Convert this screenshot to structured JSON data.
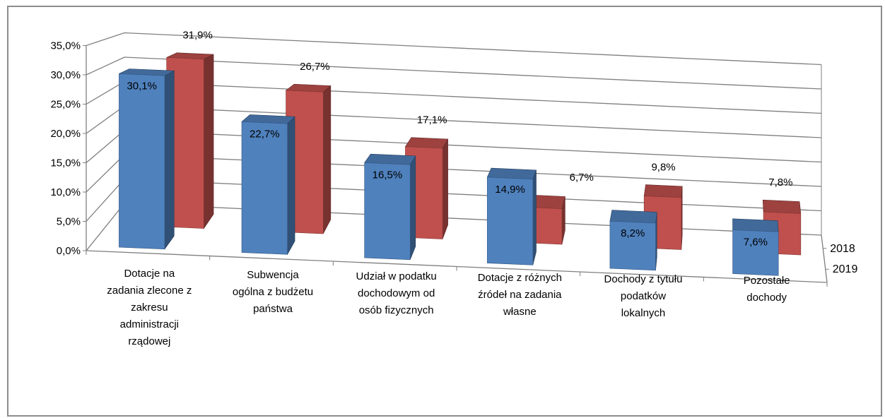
{
  "chart_data": {
    "type": "bar",
    "subtype": "3d-clustered-column",
    "categories": [
      [
        "Dotacje na",
        "zadania zlecone z",
        "zakresu",
        "administracji",
        "rządowej"
      ],
      [
        "Subwencja",
        "ogólna z budżetu",
        "państwa"
      ],
      [
        "Udział w podatku",
        "dochodowym od",
        "osób fizycznych"
      ],
      [
        "Dotacje z różnych",
        "źródeł na zadania",
        "własne"
      ],
      [
        "Dochody z tytułu",
        "podatków",
        "lokalnych"
      ],
      [
        "Pozostałe",
        "dochody"
      ]
    ],
    "series": [
      {
        "name": "2018",
        "values": [
          31.9,
          26.7,
          17.1,
          6.7,
          9.8,
          7.8
        ],
        "labels": [
          "31,9%",
          "26,7%",
          "17,1%",
          "6,7%",
          "9,8%",
          "7,8%"
        ],
        "color": "#c0504d"
      },
      {
        "name": "2019",
        "values": [
          30.1,
          22.7,
          16.5,
          14.9,
          8.2,
          7.6
        ],
        "labels": [
          "30,1%",
          "22,7%",
          "16,5%",
          "14,9%",
          "8,2%",
          "7,6%"
        ],
        "color": "#4f81bd"
      }
    ],
    "yticks": [
      "0,0%",
      "5,0%",
      "10,0%",
      "15,0%",
      "20,0%",
      "25,0%",
      "30,0%",
      "35,0%"
    ],
    "ylim": [
      0,
      35
    ],
    "grid": true,
    "title": "",
    "xlabel": "",
    "ylabel": ""
  }
}
